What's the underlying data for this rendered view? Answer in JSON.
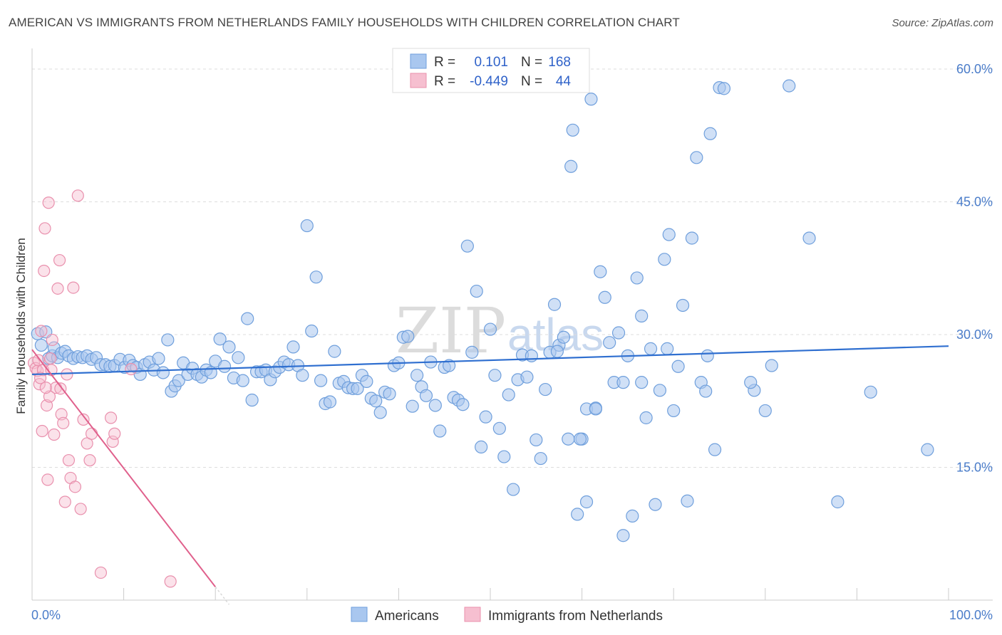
{
  "title": "AMERICAN VS IMMIGRANTS FROM NETHERLANDS FAMILY HOUSEHOLDS WITH CHILDREN CORRELATION CHART",
  "source": "Source: ZipAtlas.com",
  "watermark": {
    "zip": "ZIP",
    "atlas": "atlas"
  },
  "colors": {
    "americans_fill": "#a9c7ef",
    "americans_stroke": "#6f9fdc",
    "americans_line": "#2f6fd0",
    "netherlands_fill": "#f6bfd0",
    "netherlands_stroke": "#e990ad",
    "netherlands_line": "#e0608c",
    "tick_label": "#4a7cc9",
    "grid": "#dddddd"
  },
  "legend": {
    "rows": [
      {
        "r_label": "R =",
        "r_value": "0.101",
        "n_label": "N =",
        "n_value": "168"
      },
      {
        "r_label": "R =",
        "r_value": "-0.449",
        "n_label": "N =",
        "n_value": "44"
      }
    ]
  },
  "chart_data": {
    "type": "scatter",
    "title": "AMERICAN VS IMMIGRANTS FROM NETHERLANDS FAMILY HOUSEHOLDS WITH CHILDREN CORRELATION CHART",
    "xlabel": "",
    "ylabel": "Family Households with Children",
    "xlim": [
      0,
      100
    ],
    "ylim": [
      0,
      61
    ],
    "x_tick_labels": [
      "0.0%",
      "100.0%"
    ],
    "y_ticks": [
      15,
      30,
      45,
      60
    ],
    "y_tick_labels": [
      "15.0%",
      "30.0%",
      "45.0%",
      "60.0%"
    ],
    "grid": true,
    "legend_position": "top-center",
    "series": [
      {
        "name": "Americans",
        "trend": {
          "x": [
            0,
            100
          ],
          "y": [
            25.5,
            28.7
          ]
        },
        "points": [
          [
            0.6,
            30.1
          ],
          [
            1.0,
            28.8
          ],
          [
            1.5,
            30.3
          ],
          [
            1.8,
            27.3
          ],
          [
            2.2,
            27.6
          ],
          [
            2.4,
            28.5
          ],
          [
            2.8,
            27.4
          ],
          [
            3.2,
            27.9
          ],
          [
            3.6,
            28.1
          ],
          [
            4.0,
            27.6
          ],
          [
            4.5,
            27.3
          ],
          [
            5.0,
            27.5
          ],
          [
            5.5,
            27.4
          ],
          [
            6.0,
            27.6
          ],
          [
            6.5,
            27.2
          ],
          [
            7.0,
            27.4
          ],
          [
            7.5,
            26.6
          ],
          [
            8.0,
            26.6
          ],
          [
            8.5,
            26.4
          ],
          [
            9.0,
            26.5
          ],
          [
            9.6,
            27.2
          ],
          [
            10.1,
            26.3
          ],
          [
            10.6,
            27.1
          ],
          [
            11.0,
            26.5
          ],
          [
            11.4,
            26.3
          ],
          [
            11.8,
            25.5
          ],
          [
            12.3,
            26.6
          ],
          [
            12.8,
            26.9
          ],
          [
            13.3,
            26.0
          ],
          [
            13.8,
            27.3
          ],
          [
            14.3,
            25.7
          ],
          [
            14.8,
            29.4
          ],
          [
            15.2,
            23.6
          ],
          [
            15.6,
            24.2
          ],
          [
            16.0,
            24.8
          ],
          [
            16.5,
            26.8
          ],
          [
            17.0,
            25.5
          ],
          [
            17.5,
            26.2
          ],
          [
            18.0,
            25.5
          ],
          [
            18.5,
            25.2
          ],
          [
            19.0,
            26.0
          ],
          [
            19.5,
            25.7
          ],
          [
            20.0,
            27.0
          ],
          [
            20.5,
            29.5
          ],
          [
            21.0,
            26.4
          ],
          [
            21.5,
            28.6
          ],
          [
            22.0,
            25.1
          ],
          [
            22.5,
            27.4
          ],
          [
            23.0,
            24.8
          ],
          [
            23.5,
            31.8
          ],
          [
            24.0,
            22.6
          ],
          [
            24.5,
            25.8
          ],
          [
            25.0,
            25.8
          ],
          [
            25.5,
            26.0
          ],
          [
            26.0,
            24.9
          ],
          [
            26.5,
            25.8
          ],
          [
            27.0,
            26.3
          ],
          [
            27.5,
            26.9
          ],
          [
            28.0,
            26.6
          ],
          [
            28.5,
            28.6
          ],
          [
            29.0,
            26.5
          ],
          [
            29.5,
            25.4
          ],
          [
            30.0,
            42.3
          ],
          [
            30.5,
            30.4
          ],
          [
            31.0,
            36.5
          ],
          [
            31.5,
            24.8
          ],
          [
            32.0,
            22.2
          ],
          [
            32.5,
            22.4
          ],
          [
            33.0,
            28.1
          ],
          [
            33.5,
            24.5
          ],
          [
            34.0,
            24.7
          ],
          [
            34.5,
            24.0
          ],
          [
            35.0,
            23.9
          ],
          [
            35.5,
            23.9
          ],
          [
            36.0,
            25.4
          ],
          [
            36.5,
            24.7
          ],
          [
            37.0,
            22.8
          ],
          [
            37.5,
            22.5
          ],
          [
            38.0,
            21.2
          ],
          [
            38.5,
            23.5
          ],
          [
            39.0,
            23.3
          ],
          [
            39.5,
            26.5
          ],
          [
            40.0,
            26.8
          ],
          [
            40.5,
            29.7
          ],
          [
            41.0,
            29.8
          ],
          [
            41.5,
            21.9
          ],
          [
            42.0,
            25.4
          ],
          [
            42.5,
            24.1
          ],
          [
            43.0,
            23.1
          ],
          [
            43.5,
            26.9
          ],
          [
            44.0,
            22.0
          ],
          [
            44.5,
            19.1
          ],
          [
            45.0,
            26.3
          ],
          [
            45.5,
            26.5
          ],
          [
            46.0,
            22.9
          ],
          [
            46.5,
            22.6
          ],
          [
            47.0,
            22.1
          ],
          [
            47.5,
            40.0
          ],
          [
            48.0,
            28.0
          ],
          [
            48.5,
            34.9
          ],
          [
            49.0,
            17.3
          ],
          [
            49.5,
            20.7
          ],
          [
            50.0,
            30.6
          ],
          [
            50.5,
            25.4
          ],
          [
            51.0,
            19.4
          ],
          [
            51.5,
            16.2
          ],
          [
            52.0,
            23.2
          ],
          [
            52.5,
            12.5
          ],
          [
            53.0,
            24.9
          ],
          [
            53.5,
            27.7
          ],
          [
            54.0,
            25.2
          ],
          [
            54.5,
            27.6
          ],
          [
            55.0,
            18.1
          ],
          [
            55.5,
            16.0
          ],
          [
            56.0,
            23.8
          ],
          [
            56.5,
            28.0
          ],
          [
            57.0,
            33.4
          ],
          [
            57.5,
            28.8
          ],
          [
            58.0,
            29.7
          ],
          [
            58.5,
            18.2
          ],
          [
            59.0,
            53.1
          ],
          [
            59.5,
            9.7
          ],
          [
            60.0,
            18.2
          ],
          [
            60.5,
            21.6
          ],
          [
            61.0,
            56.6
          ],
          [
            61.5,
            21.7
          ],
          [
            62.0,
            37.1
          ],
          [
            62.5,
            34.2
          ],
          [
            63.0,
            29.1
          ],
          [
            63.5,
            24.6
          ],
          [
            64.0,
            30.2
          ],
          [
            64.5,
            7.3
          ],
          [
            65.0,
            27.6
          ],
          [
            65.5,
            9.5
          ],
          [
            66.0,
            36.4
          ],
          [
            66.5,
            32.1
          ],
          [
            67.0,
            20.6
          ],
          [
            67.5,
            28.4
          ],
          [
            68.0,
            10.8
          ],
          [
            68.5,
            23.7
          ],
          [
            69.0,
            38.5
          ],
          [
            69.5,
            41.3
          ],
          [
            70.0,
            21.4
          ],
          [
            70.5,
            26.4
          ],
          [
            71.0,
            33.3
          ],
          [
            71.5,
            11.2
          ],
          [
            72.0,
            40.9
          ],
          [
            72.5,
            50.0
          ],
          [
            73.0,
            24.6
          ],
          [
            73.5,
            23.6
          ],
          [
            74.0,
            52.7
          ],
          [
            74.5,
            17.0
          ],
          [
            75.0,
            57.9
          ],
          [
            75.5,
            57.8
          ],
          [
            58.8,
            49.0
          ],
          [
            82.6,
            58.1
          ],
          [
            84.8,
            40.9
          ],
          [
            87.9,
            11.1
          ],
          [
            91.5,
            23.5
          ],
          [
            97.7,
            17.0
          ],
          [
            80.7,
            26.5
          ],
          [
            80.0,
            21.4
          ],
          [
            78.8,
            23.7
          ],
          [
            78.4,
            24.6
          ],
          [
            73.7,
            27.6
          ],
          [
            69.3,
            28.4
          ],
          [
            66.5,
            24.6
          ],
          [
            64.5,
            24.6
          ],
          [
            61.5,
            21.6
          ],
          [
            60.5,
            11.1
          ],
          [
            59.8,
            18.2
          ],
          [
            57.3,
            28.1
          ]
        ]
      },
      {
        "name": "Immigrants from Netherlands",
        "trend": {
          "x": [
            0,
            20
          ],
          "y": [
            28.3,
            1.5
          ]
        },
        "trend_dashed": {
          "x": [
            20,
            21.5
          ],
          "y": [
            1.5,
            -0.5
          ]
        },
        "points": [
          [
            0.2,
            26.8
          ],
          [
            0.4,
            26.2
          ],
          [
            0.6,
            25.9
          ],
          [
            0.7,
            27.1
          ],
          [
            0.8,
            24.4
          ],
          [
            1.0,
            30.4
          ],
          [
            1.1,
            19.1
          ],
          [
            1.2,
            26.0
          ],
          [
            1.3,
            37.2
          ],
          [
            1.4,
            42.0
          ],
          [
            1.6,
            22.0
          ],
          [
            1.7,
            13.6
          ],
          [
            1.8,
            44.9
          ],
          [
            1.9,
            23.0
          ],
          [
            2.0,
            27.3
          ],
          [
            2.2,
            29.4
          ],
          [
            2.4,
            18.7
          ],
          [
            2.6,
            24.0
          ],
          [
            2.8,
            35.2
          ],
          [
            3.0,
            38.4
          ],
          [
            3.2,
            21.0
          ],
          [
            3.4,
            20.0
          ],
          [
            3.6,
            11.1
          ],
          [
            3.8,
            25.5
          ],
          [
            4.0,
            15.8
          ],
          [
            4.2,
            13.8
          ],
          [
            4.5,
            35.3
          ],
          [
            4.7,
            12.8
          ],
          [
            5.0,
            45.7
          ],
          [
            5.3,
            10.3
          ],
          [
            5.6,
            20.4
          ],
          [
            6.0,
            17.7
          ],
          [
            6.3,
            15.8
          ],
          [
            6.5,
            18.8
          ],
          [
            7.5,
            3.1
          ],
          [
            8.6,
            20.6
          ],
          [
            8.8,
            17.9
          ],
          [
            9.0,
            18.8
          ],
          [
            10.8,
            26.1
          ],
          [
            15.1,
            2.1
          ],
          [
            1.5,
            24.0
          ],
          [
            2.1,
            26.0
          ],
          [
            0.9,
            25.1
          ],
          [
            3.1,
            23.9
          ]
        ]
      }
    ]
  },
  "bottom_legend": [
    {
      "label": "Americans"
    },
    {
      "label": "Immigrants from Netherlands"
    }
  ]
}
